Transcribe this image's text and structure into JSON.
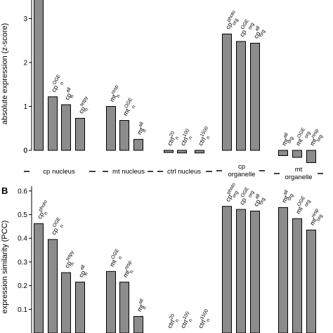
{
  "chart_data": [
    {
      "panel": "",
      "type": "bar",
      "ylabel": "absolute expression (z-score)",
      "ylim": [
        -0.4,
        4.0
      ],
      "yticks": [
        0,
        1,
        2,
        3
      ],
      "bars": [
        {
          "base": "cp",
          "sup": "photo",
          "sub": "n",
          "value": 3.75
        },
        {
          "base": "cp",
          "sup": "OGE",
          "sub": "n",
          "value": 1.22
        },
        {
          "base": "cp",
          "sup": "all",
          "sub": "n",
          "value": 1.04
        },
        {
          "base": "cp",
          "sup": "tetpy",
          "sub": "n",
          "value": 0.73
        },
        {
          "base": "mt",
          "sup": "resp",
          "sub": "n",
          "value": 1.0
        },
        {
          "base": "mt",
          "sup": "OGE",
          "sub": "n",
          "value": 0.68
        },
        {
          "base": "mt",
          "sup": "all",
          "sub": "n",
          "value": 0.25
        },
        {
          "base": "ctrl",
          "sup": "20",
          "sub": "n",
          "value": -0.05
        },
        {
          "base": "ctrl",
          "sup": "100",
          "sub": "n",
          "value": -0.06
        },
        {
          "base": "ctrl",
          "sup": "1500",
          "sub": "n",
          "value": -0.06
        },
        {
          "base": "cp",
          "sup": "photo",
          "sub": "org",
          "value": 2.65
        },
        {
          "base": "cp",
          "sup": "OGE",
          "sub": "org",
          "value": 2.48
        },
        {
          "base": "cp",
          "sup": "all",
          "sub": "org",
          "value": 2.44
        },
        {
          "base": "mt",
          "sup": "all",
          "sub": "org",
          "value": -0.12
        },
        {
          "base": "mt",
          "sup": "OGE",
          "sub": "org",
          "value": -0.16
        },
        {
          "base": "mt",
          "sup": "resp",
          "sub": "org",
          "value": -0.28
        }
      ],
      "groups": [
        "cp nucleus",
        "mt nucleus",
        "ctrl nucleus",
        "cp\norganelle",
        "mt\norganelle"
      ]
    },
    {
      "panel": "B",
      "type": "bar",
      "ylabel": "expression similarity (PCC)",
      "ylim": [
        0.0,
        0.62
      ],
      "yticks": [
        0.1,
        0.2,
        0.3,
        0.4,
        0.5,
        0.6
      ],
      "bars": [
        {
          "base": "cp",
          "sup": "photo",
          "sub": "n",
          "value": 0.462
        },
        {
          "base": "cp",
          "sup": "OGE",
          "sub": "n",
          "value": 0.395
        },
        {
          "base": "cp",
          "sup": "tetpy",
          "sub": "n",
          "value": 0.255
        },
        {
          "base": "cp",
          "sup": "all",
          "sub": "n",
          "value": 0.215
        },
        {
          "base": "mt",
          "sup": "OGE",
          "sub": "n",
          "value": 0.26
        },
        {
          "base": "mt",
          "sup": "resp",
          "sub": "n",
          "value": 0.215
        },
        {
          "base": "mt",
          "sup": "all",
          "sub": "n",
          "value": 0.07
        },
        {
          "base": "ctrl",
          "sup": "20",
          "sub": "n",
          "value": 0.0
        },
        {
          "base": "ctrl",
          "sup": "100",
          "sub": "n",
          "value": 0.0
        },
        {
          "base": "ctrl",
          "sup": "1500",
          "sub": "n",
          "value": 0.0
        },
        {
          "base": "cp",
          "sup": "photo",
          "sub": "org",
          "value": 0.535
        },
        {
          "base": "cp",
          "sup": "OGE",
          "sub": "org",
          "value": 0.522
        },
        {
          "base": "cp",
          "sup": "all",
          "sub": "org",
          "value": 0.515
        },
        {
          "base": "mt",
          "sup": "all",
          "sub": "org",
          "value": 0.53
        },
        {
          "base": "mt",
          "sup": "OGE",
          "sub": "org",
          "value": 0.483
        },
        {
          "base": "mt",
          "sup": "resp",
          "sub": "org",
          "value": 0.435
        }
      ]
    }
  ]
}
